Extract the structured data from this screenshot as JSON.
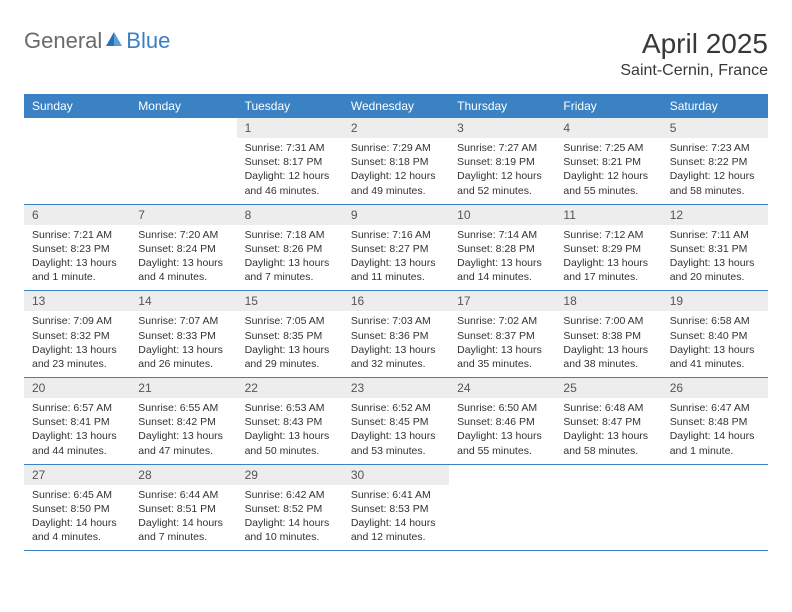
{
  "logo": {
    "part1": "General",
    "part2": "Blue"
  },
  "title": "April 2025",
  "location": "Saint-Cernin, France",
  "colors": {
    "header_bg": "#3a82c4",
    "header_text": "#ffffff",
    "daynum_bg": "#ededed",
    "daynum_text": "#555555",
    "body_text": "#333333",
    "rule": "#3a82c4",
    "logo_gray": "#6a6a6a",
    "logo_blue": "#3a7fc4"
  },
  "weekdays": [
    "Sunday",
    "Monday",
    "Tuesday",
    "Wednesday",
    "Thursday",
    "Friday",
    "Saturday"
  ],
  "weeks": [
    [
      null,
      null,
      {
        "n": "1",
        "sr": "Sunrise: 7:31 AM",
        "ss": "Sunset: 8:17 PM",
        "dl": "Daylight: 12 hours and 46 minutes."
      },
      {
        "n": "2",
        "sr": "Sunrise: 7:29 AM",
        "ss": "Sunset: 8:18 PM",
        "dl": "Daylight: 12 hours and 49 minutes."
      },
      {
        "n": "3",
        "sr": "Sunrise: 7:27 AM",
        "ss": "Sunset: 8:19 PM",
        "dl": "Daylight: 12 hours and 52 minutes."
      },
      {
        "n": "4",
        "sr": "Sunrise: 7:25 AM",
        "ss": "Sunset: 8:21 PM",
        "dl": "Daylight: 12 hours and 55 minutes."
      },
      {
        "n": "5",
        "sr": "Sunrise: 7:23 AM",
        "ss": "Sunset: 8:22 PM",
        "dl": "Daylight: 12 hours and 58 minutes."
      }
    ],
    [
      {
        "n": "6",
        "sr": "Sunrise: 7:21 AM",
        "ss": "Sunset: 8:23 PM",
        "dl": "Daylight: 13 hours and 1 minute."
      },
      {
        "n": "7",
        "sr": "Sunrise: 7:20 AM",
        "ss": "Sunset: 8:24 PM",
        "dl": "Daylight: 13 hours and 4 minutes."
      },
      {
        "n": "8",
        "sr": "Sunrise: 7:18 AM",
        "ss": "Sunset: 8:26 PM",
        "dl": "Daylight: 13 hours and 7 minutes."
      },
      {
        "n": "9",
        "sr": "Sunrise: 7:16 AM",
        "ss": "Sunset: 8:27 PM",
        "dl": "Daylight: 13 hours and 11 minutes."
      },
      {
        "n": "10",
        "sr": "Sunrise: 7:14 AM",
        "ss": "Sunset: 8:28 PM",
        "dl": "Daylight: 13 hours and 14 minutes."
      },
      {
        "n": "11",
        "sr": "Sunrise: 7:12 AM",
        "ss": "Sunset: 8:29 PM",
        "dl": "Daylight: 13 hours and 17 minutes."
      },
      {
        "n": "12",
        "sr": "Sunrise: 7:11 AM",
        "ss": "Sunset: 8:31 PM",
        "dl": "Daylight: 13 hours and 20 minutes."
      }
    ],
    [
      {
        "n": "13",
        "sr": "Sunrise: 7:09 AM",
        "ss": "Sunset: 8:32 PM",
        "dl": "Daylight: 13 hours and 23 minutes."
      },
      {
        "n": "14",
        "sr": "Sunrise: 7:07 AM",
        "ss": "Sunset: 8:33 PM",
        "dl": "Daylight: 13 hours and 26 minutes."
      },
      {
        "n": "15",
        "sr": "Sunrise: 7:05 AM",
        "ss": "Sunset: 8:35 PM",
        "dl": "Daylight: 13 hours and 29 minutes."
      },
      {
        "n": "16",
        "sr": "Sunrise: 7:03 AM",
        "ss": "Sunset: 8:36 PM",
        "dl": "Daylight: 13 hours and 32 minutes."
      },
      {
        "n": "17",
        "sr": "Sunrise: 7:02 AM",
        "ss": "Sunset: 8:37 PM",
        "dl": "Daylight: 13 hours and 35 minutes."
      },
      {
        "n": "18",
        "sr": "Sunrise: 7:00 AM",
        "ss": "Sunset: 8:38 PM",
        "dl": "Daylight: 13 hours and 38 minutes."
      },
      {
        "n": "19",
        "sr": "Sunrise: 6:58 AM",
        "ss": "Sunset: 8:40 PM",
        "dl": "Daylight: 13 hours and 41 minutes."
      }
    ],
    [
      {
        "n": "20",
        "sr": "Sunrise: 6:57 AM",
        "ss": "Sunset: 8:41 PM",
        "dl": "Daylight: 13 hours and 44 minutes."
      },
      {
        "n": "21",
        "sr": "Sunrise: 6:55 AM",
        "ss": "Sunset: 8:42 PM",
        "dl": "Daylight: 13 hours and 47 minutes."
      },
      {
        "n": "22",
        "sr": "Sunrise: 6:53 AM",
        "ss": "Sunset: 8:43 PM",
        "dl": "Daylight: 13 hours and 50 minutes."
      },
      {
        "n": "23",
        "sr": "Sunrise: 6:52 AM",
        "ss": "Sunset: 8:45 PM",
        "dl": "Daylight: 13 hours and 53 minutes."
      },
      {
        "n": "24",
        "sr": "Sunrise: 6:50 AM",
        "ss": "Sunset: 8:46 PM",
        "dl": "Daylight: 13 hours and 55 minutes."
      },
      {
        "n": "25",
        "sr": "Sunrise: 6:48 AM",
        "ss": "Sunset: 8:47 PM",
        "dl": "Daylight: 13 hours and 58 minutes."
      },
      {
        "n": "26",
        "sr": "Sunrise: 6:47 AM",
        "ss": "Sunset: 8:48 PM",
        "dl": "Daylight: 14 hours and 1 minute."
      }
    ],
    [
      {
        "n": "27",
        "sr": "Sunrise: 6:45 AM",
        "ss": "Sunset: 8:50 PM",
        "dl": "Daylight: 14 hours and 4 minutes."
      },
      {
        "n": "28",
        "sr": "Sunrise: 6:44 AM",
        "ss": "Sunset: 8:51 PM",
        "dl": "Daylight: 14 hours and 7 minutes."
      },
      {
        "n": "29",
        "sr": "Sunrise: 6:42 AM",
        "ss": "Sunset: 8:52 PM",
        "dl": "Daylight: 14 hours and 10 minutes."
      },
      {
        "n": "30",
        "sr": "Sunrise: 6:41 AM",
        "ss": "Sunset: 8:53 PM",
        "dl": "Daylight: 14 hours and 12 minutes."
      },
      null,
      null,
      null
    ]
  ]
}
